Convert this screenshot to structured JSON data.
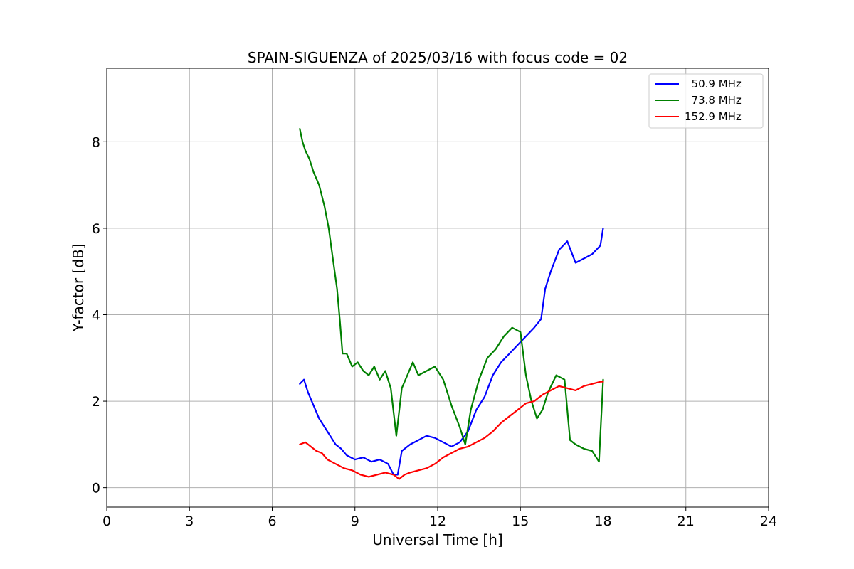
{
  "chart_data": {
    "type": "line",
    "title": "SPAIN-SIGUENZA of 2025/03/16 with focus code = 02",
    "xlabel": "Universal Time [h]",
    "ylabel": "Y-factor [dB]",
    "xlim": [
      0,
      24
    ],
    "ylim": [
      -0.45,
      9.7
    ],
    "xticks": [
      0,
      3,
      6,
      9,
      12,
      15,
      18,
      21,
      24
    ],
    "yticks": [
      0,
      2,
      4,
      6,
      8
    ],
    "grid": true,
    "legend_position": "top-right",
    "series": [
      {
        "name": "  50.9 MHz",
        "color": "#0000ff",
        "x": [
          7.0,
          7.15,
          7.3,
          7.5,
          7.7,
          7.9,
          8.1,
          8.3,
          8.5,
          8.7,
          9.0,
          9.3,
          9.6,
          9.9,
          10.2,
          10.4,
          10.55,
          10.7,
          11.0,
          11.3,
          11.6,
          11.9,
          12.2,
          12.5,
          12.8,
          13.1,
          13.4,
          13.7,
          14.0,
          14.3,
          14.6,
          14.9,
          15.2,
          15.5,
          15.75,
          15.9,
          16.1,
          16.4,
          16.7,
          17.0,
          17.3,
          17.6,
          17.9,
          18.0
        ],
        "y": [
          2.4,
          2.5,
          2.2,
          1.9,
          1.6,
          1.4,
          1.2,
          1.0,
          0.9,
          0.75,
          0.65,
          0.7,
          0.6,
          0.65,
          0.55,
          0.3,
          0.3,
          0.85,
          1.0,
          1.1,
          1.2,
          1.15,
          1.05,
          0.95,
          1.05,
          1.3,
          1.8,
          2.1,
          2.6,
          2.9,
          3.1,
          3.3,
          3.5,
          3.7,
          3.9,
          4.6,
          5.0,
          5.5,
          5.7,
          5.2,
          5.3,
          5.4,
          5.6,
          6.0
        ]
      },
      {
        "name": "  73.8 MHz",
        "color": "#008000",
        "x": [
          7.0,
          7.1,
          7.2,
          7.35,
          7.5,
          7.7,
          7.9,
          8.05,
          8.2,
          8.35,
          8.45,
          8.55,
          8.7,
          8.9,
          9.1,
          9.3,
          9.5,
          9.7,
          9.9,
          10.1,
          10.3,
          10.5,
          10.7,
          10.9,
          11.1,
          11.3,
          11.6,
          11.9,
          12.2,
          12.5,
          12.8,
          13.0,
          13.2,
          13.5,
          13.8,
          14.1,
          14.4,
          14.7,
          15.0,
          15.2,
          15.4,
          15.6,
          15.8,
          16.0,
          16.3,
          16.6,
          16.8,
          17.0,
          17.3,
          17.6,
          17.85,
          18.0
        ],
        "y": [
          8.3,
          8.0,
          7.8,
          7.6,
          7.3,
          7.0,
          6.5,
          6.0,
          5.3,
          4.6,
          3.9,
          3.1,
          3.1,
          2.8,
          2.9,
          2.7,
          2.6,
          2.8,
          2.5,
          2.7,
          2.3,
          1.2,
          2.3,
          2.6,
          2.9,
          2.6,
          2.7,
          2.8,
          2.5,
          1.9,
          1.4,
          1.0,
          1.8,
          2.5,
          3.0,
          3.2,
          3.5,
          3.7,
          3.6,
          2.6,
          2.0,
          1.6,
          1.8,
          2.2,
          2.6,
          2.5,
          1.1,
          1.0,
          0.9,
          0.85,
          0.6,
          2.5
        ]
      },
      {
        "name": "152.9 MHz",
        "color": "#ff0000",
        "x": [
          7.0,
          7.2,
          7.4,
          7.6,
          7.8,
          8.0,
          8.3,
          8.6,
          8.9,
          9.2,
          9.5,
          9.8,
          10.1,
          10.4,
          10.6,
          10.8,
          11.0,
          11.3,
          11.6,
          11.9,
          12.2,
          12.5,
          12.8,
          13.1,
          13.4,
          13.7,
          14.0,
          14.3,
          14.6,
          14.9,
          15.2,
          15.5,
          15.8,
          16.1,
          16.4,
          16.7,
          17.0,
          17.3,
          17.6,
          17.9,
          18.0
        ],
        "y": [
          1.0,
          1.05,
          0.95,
          0.85,
          0.8,
          0.65,
          0.55,
          0.45,
          0.4,
          0.3,
          0.25,
          0.3,
          0.35,
          0.3,
          0.2,
          0.3,
          0.35,
          0.4,
          0.45,
          0.55,
          0.7,
          0.8,
          0.9,
          0.95,
          1.05,
          1.15,
          1.3,
          1.5,
          1.65,
          1.8,
          1.95,
          2.0,
          2.15,
          2.25,
          2.35,
          2.3,
          2.25,
          2.35,
          2.4,
          2.45,
          2.45
        ]
      }
    ]
  }
}
